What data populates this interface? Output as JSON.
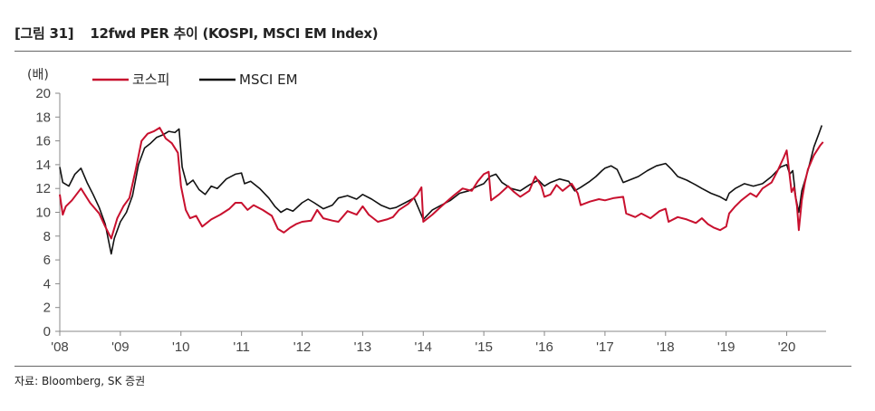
{
  "figure": {
    "number": "[그림 31]",
    "title": "12fwd PER 추이 (KOSPI, MSCI EM Index)",
    "source": "자료: Bloomberg, SK 증권"
  },
  "chart_data": {
    "type": "line",
    "unit_label": "(배)",
    "ylim": [
      0,
      20
    ],
    "yticks": [
      0,
      2,
      4,
      6,
      8,
      10,
      12,
      14,
      16,
      18,
      20
    ],
    "xlim": [
      2008.0,
      2020.65
    ],
    "xticks": [
      {
        "value": 2008,
        "label": "'08"
      },
      {
        "value": 2009,
        "label": "'09"
      },
      {
        "value": 2010,
        "label": "'10"
      },
      {
        "value": 2011,
        "label": "'11"
      },
      {
        "value": 2012,
        "label": "'12"
      },
      {
        "value": 2013,
        "label": "'13"
      },
      {
        "value": 2014,
        "label": "'14"
      },
      {
        "value": 2015,
        "label": "'15"
      },
      {
        "value": 2016,
        "label": "'16"
      },
      {
        "value": 2017,
        "label": "'17"
      },
      {
        "value": 2018,
        "label": "'18"
      },
      {
        "value": 2019,
        "label": "'19"
      },
      {
        "value": 2020,
        "label": "'20"
      }
    ],
    "legend_position": "top-left",
    "series": [
      {
        "name": "코스피",
        "color": "#c8102e",
        "points": [
          [
            2008.0,
            11.5
          ],
          [
            2008.05,
            9.8
          ],
          [
            2008.1,
            10.5
          ],
          [
            2008.2,
            11.0
          ],
          [
            2008.35,
            12.0
          ],
          [
            2008.5,
            10.8
          ],
          [
            2008.65,
            9.9
          ],
          [
            2008.75,
            8.8
          ],
          [
            2008.85,
            7.8
          ],
          [
            2008.95,
            9.5
          ],
          [
            2009.05,
            10.5
          ],
          [
            2009.15,
            11.2
          ],
          [
            2009.25,
            13.5
          ],
          [
            2009.35,
            16.0
          ],
          [
            2009.45,
            16.6
          ],
          [
            2009.55,
            16.8
          ],
          [
            2009.65,
            17.1
          ],
          [
            2009.75,
            16.2
          ],
          [
            2009.85,
            15.8
          ],
          [
            2009.95,
            15.0
          ],
          [
            2010.0,
            12.2
          ],
          [
            2010.08,
            10.2
          ],
          [
            2010.15,
            9.5
          ],
          [
            2010.25,
            9.7
          ],
          [
            2010.35,
            8.8
          ],
          [
            2010.5,
            9.4
          ],
          [
            2010.65,
            9.8
          ],
          [
            2010.8,
            10.3
          ],
          [
            2010.9,
            10.8
          ],
          [
            2011.0,
            10.8
          ],
          [
            2011.1,
            10.2
          ],
          [
            2011.2,
            10.6
          ],
          [
            2011.35,
            10.2
          ],
          [
            2011.5,
            9.7
          ],
          [
            2011.6,
            8.6
          ],
          [
            2011.7,
            8.3
          ],
          [
            2011.8,
            8.7
          ],
          [
            2011.9,
            9.0
          ],
          [
            2012.0,
            9.2
          ],
          [
            2012.15,
            9.3
          ],
          [
            2012.25,
            10.2
          ],
          [
            2012.35,
            9.5
          ],
          [
            2012.5,
            9.3
          ],
          [
            2012.6,
            9.2
          ],
          [
            2012.75,
            10.1
          ],
          [
            2012.9,
            9.8
          ],
          [
            2013.0,
            10.5
          ],
          [
            2013.1,
            9.8
          ],
          [
            2013.25,
            9.2
          ],
          [
            2013.4,
            9.4
          ],
          [
            2013.5,
            9.6
          ],
          [
            2013.6,
            10.2
          ],
          [
            2013.75,
            10.7
          ],
          [
            2013.9,
            11.5
          ],
          [
            2013.97,
            12.1
          ],
          [
            2014.0,
            9.2
          ],
          [
            2014.15,
            9.8
          ],
          [
            2014.3,
            10.5
          ],
          [
            2014.5,
            11.4
          ],
          [
            2014.65,
            12.0
          ],
          [
            2014.8,
            11.8
          ],
          [
            2014.9,
            12.6
          ],
          [
            2015.0,
            13.2
          ],
          [
            2015.08,
            13.4
          ],
          [
            2015.12,
            11.0
          ],
          [
            2015.25,
            11.5
          ],
          [
            2015.4,
            12.2
          ],
          [
            2015.5,
            11.7
          ],
          [
            2015.6,
            11.3
          ],
          [
            2015.75,
            11.8
          ],
          [
            2015.85,
            13.0
          ],
          [
            2015.95,
            12.2
          ],
          [
            2016.0,
            11.3
          ],
          [
            2016.1,
            11.5
          ],
          [
            2016.2,
            12.3
          ],
          [
            2016.3,
            11.8
          ],
          [
            2016.45,
            12.4
          ],
          [
            2016.55,
            11.6
          ],
          [
            2016.6,
            10.6
          ],
          [
            2016.75,
            10.9
          ],
          [
            2016.9,
            11.1
          ],
          [
            2017.0,
            11.0
          ],
          [
            2017.15,
            11.2
          ],
          [
            2017.3,
            11.3
          ],
          [
            2017.35,
            9.9
          ],
          [
            2017.5,
            9.6
          ],
          [
            2017.6,
            9.9
          ],
          [
            2017.75,
            9.5
          ],
          [
            2017.9,
            10.1
          ],
          [
            2018.0,
            10.3
          ],
          [
            2018.05,
            9.2
          ],
          [
            2018.2,
            9.6
          ],
          [
            2018.35,
            9.4
          ],
          [
            2018.5,
            9.1
          ],
          [
            2018.6,
            9.5
          ],
          [
            2018.7,
            9.0
          ],
          [
            2018.8,
            8.7
          ],
          [
            2018.9,
            8.5
          ],
          [
            2019.0,
            8.8
          ],
          [
            2019.05,
            9.9
          ],
          [
            2019.15,
            10.5
          ],
          [
            2019.25,
            11.0
          ],
          [
            2019.4,
            11.6
          ],
          [
            2019.5,
            11.3
          ],
          [
            2019.6,
            12.0
          ],
          [
            2019.75,
            12.5
          ],
          [
            2019.85,
            13.5
          ],
          [
            2019.95,
            14.6
          ],
          [
            2020.0,
            15.2
          ],
          [
            2020.05,
            13.0
          ],
          [
            2020.08,
            11.7
          ],
          [
            2020.12,
            12.1
          ],
          [
            2020.17,
            10.5
          ],
          [
            2020.2,
            8.5
          ],
          [
            2020.25,
            11.0
          ],
          [
            2020.3,
            12.5
          ],
          [
            2020.35,
            13.6
          ],
          [
            2020.45,
            14.8
          ],
          [
            2020.55,
            15.6
          ],
          [
            2020.6,
            15.9
          ]
        ]
      },
      {
        "name": "MSCI EM",
        "color": "#111111",
        "points": [
          [
            2008.0,
            13.8
          ],
          [
            2008.05,
            12.5
          ],
          [
            2008.15,
            12.2
          ],
          [
            2008.25,
            13.2
          ],
          [
            2008.35,
            13.7
          ],
          [
            2008.45,
            12.5
          ],
          [
            2008.55,
            11.5
          ],
          [
            2008.65,
            10.4
          ],
          [
            2008.75,
            9.0
          ],
          [
            2008.85,
            6.5
          ],
          [
            2008.9,
            7.8
          ],
          [
            2009.0,
            9.2
          ],
          [
            2009.1,
            10.0
          ],
          [
            2009.2,
            11.4
          ],
          [
            2009.3,
            14.0
          ],
          [
            2009.4,
            15.4
          ],
          [
            2009.5,
            15.8
          ],
          [
            2009.6,
            16.3
          ],
          [
            2009.7,
            16.5
          ],
          [
            2009.8,
            16.8
          ],
          [
            2009.9,
            16.7
          ],
          [
            2009.97,
            17.0
          ],
          [
            2010.02,
            13.8
          ],
          [
            2010.1,
            12.3
          ],
          [
            2010.2,
            12.7
          ],
          [
            2010.3,
            11.9
          ],
          [
            2010.4,
            11.5
          ],
          [
            2010.5,
            12.2
          ],
          [
            2010.6,
            12.0
          ],
          [
            2010.75,
            12.8
          ],
          [
            2010.9,
            13.2
          ],
          [
            2011.0,
            13.3
          ],
          [
            2011.05,
            12.4
          ],
          [
            2011.15,
            12.6
          ],
          [
            2011.3,
            12.0
          ],
          [
            2011.45,
            11.2
          ],
          [
            2011.55,
            10.5
          ],
          [
            2011.65,
            10.0
          ],
          [
            2011.75,
            10.3
          ],
          [
            2011.85,
            10.1
          ],
          [
            2012.0,
            10.8
          ],
          [
            2012.1,
            11.1
          ],
          [
            2012.2,
            10.8
          ],
          [
            2012.35,
            10.3
          ],
          [
            2012.5,
            10.6
          ],
          [
            2012.6,
            11.2
          ],
          [
            2012.75,
            11.4
          ],
          [
            2012.9,
            11.1
          ],
          [
            2013.0,
            11.5
          ],
          [
            2013.15,
            11.1
          ],
          [
            2013.3,
            10.6
          ],
          [
            2013.45,
            10.3
          ],
          [
            2013.55,
            10.4
          ],
          [
            2013.7,
            10.8
          ],
          [
            2013.85,
            11.2
          ],
          [
            2014.0,
            9.4
          ],
          [
            2014.15,
            10.2
          ],
          [
            2014.3,
            10.6
          ],
          [
            2014.45,
            11.0
          ],
          [
            2014.6,
            11.6
          ],
          [
            2014.75,
            11.8
          ],
          [
            2014.9,
            12.2
          ],
          [
            2015.0,
            12.4
          ],
          [
            2015.1,
            13.0
          ],
          [
            2015.2,
            13.2
          ],
          [
            2015.3,
            12.5
          ],
          [
            2015.45,
            12.0
          ],
          [
            2015.6,
            11.8
          ],
          [
            2015.75,
            12.3
          ],
          [
            2015.9,
            12.7
          ],
          [
            2016.0,
            12.2
          ],
          [
            2016.1,
            12.5
          ],
          [
            2016.25,
            12.8
          ],
          [
            2016.4,
            12.6
          ],
          [
            2016.5,
            11.8
          ],
          [
            2016.6,
            12.1
          ],
          [
            2016.75,
            12.6
          ],
          [
            2016.85,
            13.0
          ],
          [
            2016.95,
            13.5
          ],
          [
            2017.0,
            13.7
          ],
          [
            2017.1,
            13.9
          ],
          [
            2017.2,
            13.6
          ],
          [
            2017.3,
            12.5
          ],
          [
            2017.4,
            12.7
          ],
          [
            2017.55,
            13.0
          ],
          [
            2017.7,
            13.5
          ],
          [
            2017.85,
            13.9
          ],
          [
            2018.0,
            14.1
          ],
          [
            2018.1,
            13.6
          ],
          [
            2018.2,
            13.0
          ],
          [
            2018.35,
            12.7
          ],
          [
            2018.5,
            12.3
          ],
          [
            2018.6,
            12.0
          ],
          [
            2018.75,
            11.6
          ],
          [
            2018.9,
            11.3
          ],
          [
            2019.0,
            11.0
          ],
          [
            2019.05,
            11.6
          ],
          [
            2019.15,
            12.0
          ],
          [
            2019.3,
            12.4
          ],
          [
            2019.45,
            12.2
          ],
          [
            2019.6,
            12.4
          ],
          [
            2019.75,
            13.0
          ],
          [
            2019.9,
            13.8
          ],
          [
            2020.0,
            14.0
          ],
          [
            2020.05,
            13.2
          ],
          [
            2020.1,
            13.5
          ],
          [
            2020.15,
            11.2
          ],
          [
            2020.2,
            10.0
          ],
          [
            2020.25,
            11.8
          ],
          [
            2020.35,
            13.5
          ],
          [
            2020.45,
            15.5
          ],
          [
            2020.53,
            16.6
          ],
          [
            2020.58,
            17.3
          ]
        ]
      }
    ]
  }
}
